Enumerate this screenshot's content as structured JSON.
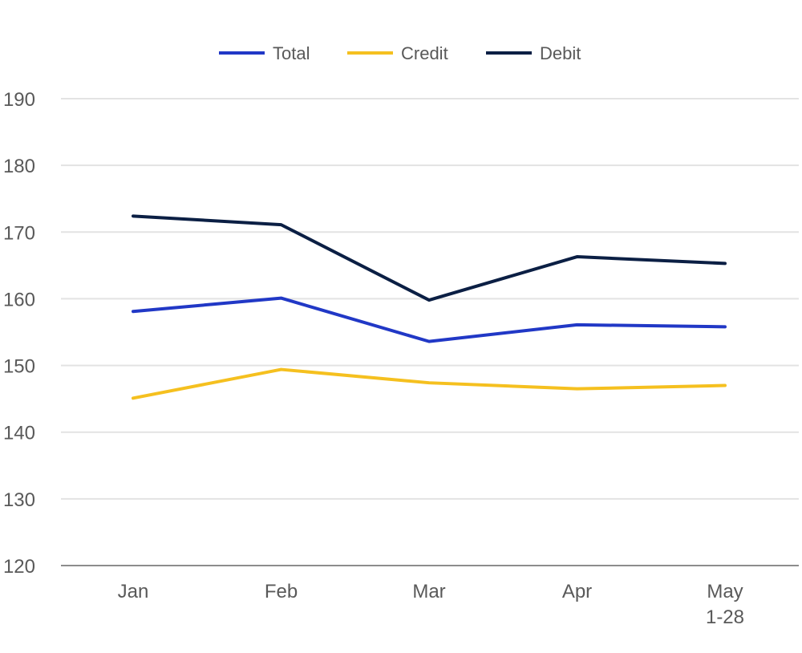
{
  "chart_data": {
    "type": "line",
    "title": "",
    "xlabel": "",
    "ylabel": "",
    "categories": [
      [
        "Jan"
      ],
      [
        "Feb"
      ],
      [
        "Mar"
      ],
      [
        "Apr"
      ],
      [
        "May",
        "1-28"
      ]
    ],
    "ylim": [
      120,
      190
    ],
    "yticks": [
      120,
      130,
      140,
      150,
      160,
      170,
      180,
      190
    ],
    "grid": true,
    "legend_position": "top-center",
    "series": [
      {
        "name": "Total",
        "color": "#2138c6",
        "values": [
          158.1,
          160.1,
          153.6,
          156.1,
          155.8
        ]
      },
      {
        "name": "Credit",
        "color": "#f5c01f",
        "values": [
          145.1,
          149.4,
          147.4,
          146.5,
          147.0
        ]
      },
      {
        "name": "Debit",
        "color": "#0b1f44",
        "values": [
          172.4,
          171.1,
          159.8,
          166.3,
          165.3
        ]
      }
    ]
  }
}
